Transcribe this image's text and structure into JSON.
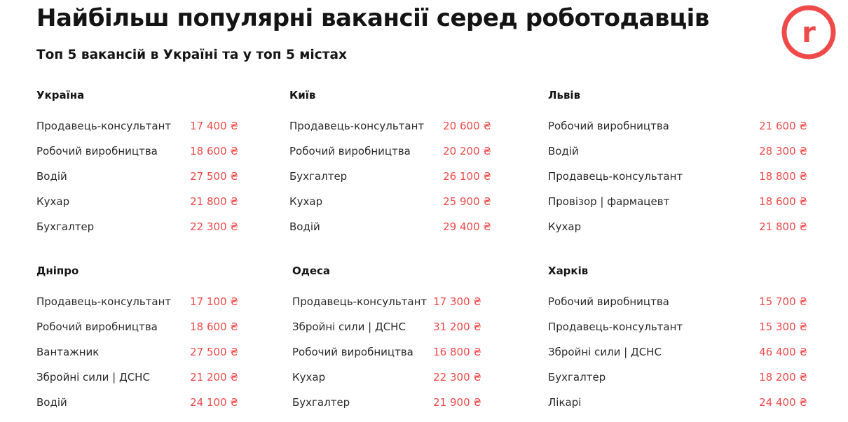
{
  "header": {
    "title": "Найбільш популярні вакансії серед роботодавців",
    "subtitle": "Топ 5 вакансій в Україні та у топ 5 містах",
    "logo_letter": "r",
    "accent_color": "#ef4a4a"
  },
  "blocks": [
    {
      "title": "Україна",
      "rows": [
        {
          "name": "Продавець-консультант",
          "value": "17 400 ₴"
        },
        {
          "name": "Робочий виробництва",
          "value": "18 600 ₴"
        },
        {
          "name": "Водій",
          "value": "27 500 ₴"
        },
        {
          "name": "Кухар",
          "value": "21 800 ₴"
        },
        {
          "name": "Бухгалтер",
          "value": "22 300 ₴"
        }
      ]
    },
    {
      "title": "Київ",
      "rows": [
        {
          "name": "Продавець-консультант",
          "value": "20 600 ₴"
        },
        {
          "name": "Робочий виробництва",
          "value": "20 200 ₴"
        },
        {
          "name": "Бухгалтер",
          "value": "26 100 ₴"
        },
        {
          "name": "Кухар",
          "value": "25 900 ₴"
        },
        {
          "name": "Водій",
          "value": "29 400 ₴"
        }
      ]
    },
    {
      "title": "Львів",
      "rows": [
        {
          "name": "Робочий виробництва",
          "value": "21 600 ₴"
        },
        {
          "name": "Водій",
          "value": "28 300 ₴"
        },
        {
          "name": "Продавець-консультант",
          "value": "18 800 ₴"
        },
        {
          "name": "Провізор | фармацевт",
          "value": "18 600 ₴"
        },
        {
          "name": "Кухар",
          "value": "21 800 ₴"
        }
      ]
    },
    {
      "title": "Дніпро",
      "rows": [
        {
          "name": "Продавець-консультант",
          "value": "17 100 ₴"
        },
        {
          "name": "Робочий виробництва",
          "value": "18 600 ₴"
        },
        {
          "name": "Вантажник",
          "value": "27 500 ₴"
        },
        {
          "name": "Збройні сили | ДСНС",
          "value": "21 200 ₴"
        },
        {
          "name": "Водій",
          "value": "24 100 ₴"
        }
      ]
    },
    {
      "title": "Одеса",
      "rows": [
        {
          "name": "Продавець-консультант",
          "value": "17 300 ₴"
        },
        {
          "name": "Збройні сили | ДСНС",
          "value": "31 200 ₴"
        },
        {
          "name": "Робочий виробництва",
          "value": "16 800 ₴"
        },
        {
          "name": "Кухар",
          "value": "22 300 ₴"
        },
        {
          "name": "Бухгалтер",
          "value": "21 900 ₴"
        }
      ]
    },
    {
      "title": "Харків",
      "rows": [
        {
          "name": "Робочий виробництва",
          "value": "15 700 ₴"
        },
        {
          "name": "Продавець-консультант",
          "value": "15 300 ₴"
        },
        {
          "name": "Збройні сили | ДСНС",
          "value": "46 400 ₴"
        },
        {
          "name": "Бухгалтер",
          "value": "18 200 ₴"
        },
        {
          "name": "Лікарі",
          "value": "24 400 ₴"
        }
      ]
    }
  ]
}
